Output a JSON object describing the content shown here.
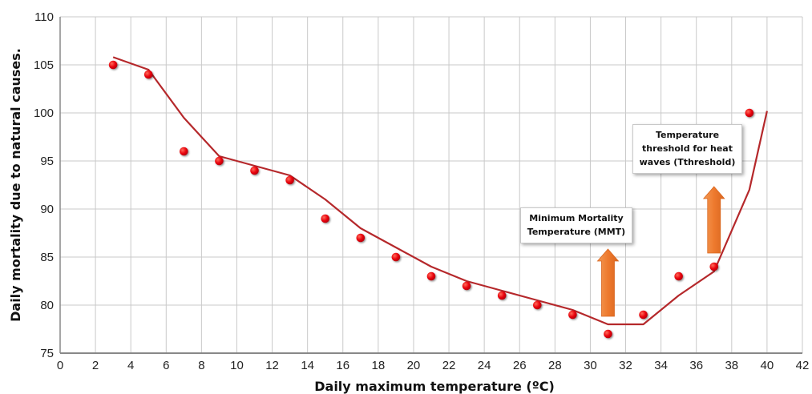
{
  "chart_data": {
    "type": "scatter",
    "title": "",
    "xlabel": "Daily maximum temperature (ºC)",
    "ylabel": "Daily mortality due to natural causes.",
    "xlim": [
      0,
      42
    ],
    "ylim": [
      75,
      110
    ],
    "x_ticks": [
      0,
      2,
      4,
      6,
      8,
      10,
      12,
      14,
      16,
      18,
      20,
      22,
      24,
      26,
      28,
      30,
      32,
      34,
      36,
      38,
      40,
      42
    ],
    "y_ticks": [
      75,
      80,
      85,
      90,
      95,
      100,
      105,
      110
    ],
    "grid": true,
    "series": [
      {
        "kind": "points",
        "color": "#e8000a",
        "x": [
          3,
          5,
          7,
          9,
          11,
          13,
          15,
          17,
          19,
          21,
          23,
          25,
          27,
          29,
          31,
          33,
          35,
          37,
          39
        ],
        "y": [
          105,
          104,
          96,
          95,
          94,
          93,
          89,
          87,
          85,
          83,
          82,
          81,
          80,
          79,
          77,
          79,
          83,
          84,
          100
        ]
      },
      {
        "kind": "line",
        "color": "#b5282b",
        "x": [
          3,
          5,
          7,
          9,
          11,
          13,
          15,
          17,
          19,
          21,
          23,
          25,
          27,
          29,
          31,
          33,
          35,
          37,
          39,
          40
        ],
        "y": [
          105.8,
          104.5,
          99.5,
          95.5,
          94.5,
          93.5,
          91,
          88,
          86,
          84,
          82.5,
          81.5,
          80.5,
          79.5,
          78,
          78,
          81,
          83.5,
          92,
          100.2
        ]
      }
    ],
    "annotations": [
      {
        "name": "mmt",
        "lines": [
          "Minimum Mortality",
          "Temperature (MMT)"
        ],
        "arrow_at_x": 31
      },
      {
        "name": "threshold",
        "lines": [
          "Temperature",
          "threshold for heat",
          "waves (Tthreshold)"
        ],
        "arrow_at_x": 37
      }
    ],
    "arrow_color": "#f0843a"
  }
}
